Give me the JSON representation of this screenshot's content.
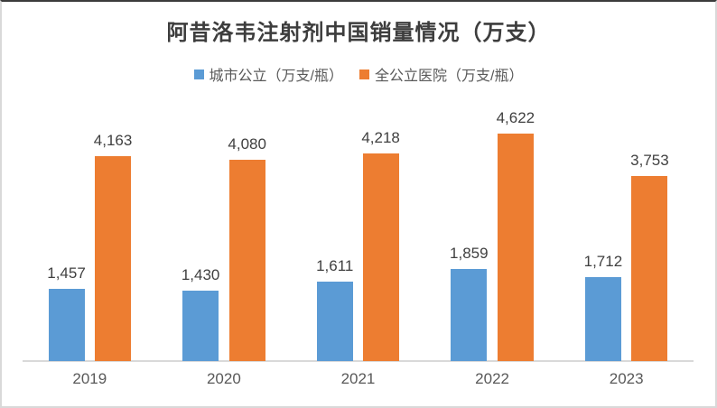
{
  "chart_data": {
    "type": "bar",
    "title": "阿昔洛韦注射剂中国销量情况（万支）",
    "categories": [
      "2019",
      "2020",
      "2021",
      "2022",
      "2023"
    ],
    "series": [
      {
        "name": "城市公立（万支/瓶）",
        "color": "#5B9BD5",
        "values": [
          1457,
          1430,
          1611,
          1859,
          1712
        ],
        "labels": [
          "1,457",
          "1,430",
          "1,611",
          "1,859",
          "1,712"
        ]
      },
      {
        "name": "全公立医院（万支/瓶）",
        "color": "#ED7D31",
        "values": [
          4163,
          4080,
          4218,
          4622,
          3753
        ],
        "labels": [
          "4,163",
          "4,080",
          "4,218",
          "4,622",
          "3,753"
        ]
      }
    ],
    "xlabel": "",
    "ylabel": "",
    "ylim": [
      0,
      5000
    ],
    "grid": false,
    "legend_position": "top",
    "axis_line_color": "#D9D9D9"
  }
}
